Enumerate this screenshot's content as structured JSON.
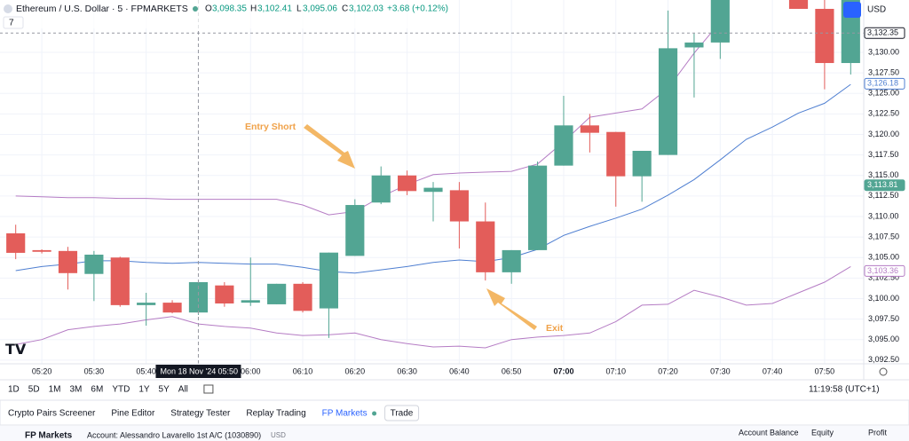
{
  "header": {
    "symbol": "Ethereum / U.S. Dollar · 5 · FPMARKETS",
    "o_label": "O",
    "o": "3,098.35",
    "h_label": "H",
    "h": "3,102.41",
    "l_label": "L",
    "l": "3,095.06",
    "c_label": "C",
    "c": "3,102.03",
    "change": "+3.68 (+0.12%)",
    "indicators": "7",
    "currency": "USD"
  },
  "chart_data": {
    "type": "candlestick",
    "categories": [
      null,
      "05:20",
      null,
      "05:30",
      null,
      "05:40",
      null,
      null,
      null,
      "06:00",
      null,
      "06:10",
      null,
      "06:20",
      null,
      "06:30",
      null,
      "06:40",
      null,
      "06:50",
      null,
      "07:00",
      null,
      "07:10",
      null,
      "07:20",
      null,
      "07:30",
      null,
      "07:40",
      null,
      "07:50",
      null
    ],
    "open": [
      3107.95,
      3105.9,
      3105.8,
      3103.0,
      3105.0,
      3099.2,
      3099.5,
      3098.3,
      3101.6,
      3099.5,
      3099.3,
      3101.8,
      3098.8,
      3105.2,
      3111.7,
      3115.0,
      3113.0,
      3113.2,
      3109.4,
      3103.2,
      3105.9,
      3116.2,
      3121.1,
      3120.3,
      3114.9,
      3117.5,
      3130.6,
      3131.2,
      null,
      null,
      3136.4,
      3135.3,
      3128.7
    ],
    "high": [
      3109.0,
      3106.0,
      3106.3,
      3105.8,
      3105.1,
      3100.7,
      3099.8,
      3102.0,
      3102.0,
      3105.0,
      3101.8,
      3102.0,
      3105.6,
      3112.1,
      3116.1,
      3115.6,
      3114.2,
      3114.2,
      3111.7,
      3105.9,
      3116.7,
      3124.7,
      3122.5,
      3120.3,
      3118.0,
      3135.1,
      3132.3,
      3136.4,
      null,
      null,
      3136.4,
      3136.4,
      3136.4
    ],
    "low": [
      3104.8,
      3105.5,
      3101.1,
      3099.7,
      3099.0,
      3096.7,
      3098.2,
      3098.0,
      3099.0,
      3099.1,
      3099.3,
      3098.3,
      3095.2,
      3105.2,
      3111.5,
      3112.6,
      3109.4,
      3106.1,
      3102.2,
      3101.8,
      3105.9,
      3116.2,
      3117.8,
      3111.2,
      3111.8,
      3117.5,
      3124.5,
      3129.2,
      null,
      null,
      3135.3,
      3125.5,
      3127.3
    ],
    "close": [
      3105.57,
      3105.7,
      3103.1,
      3105.35,
      3099.2,
      3099.5,
      3098.3,
      3102.0,
      3099.4,
      3099.8,
      3101.8,
      3098.5,
      3105.6,
      3111.4,
      3115.0,
      3113.1,
      3113.5,
      3109.4,
      3103.2,
      3105.9,
      3116.2,
      3121.1,
      3120.2,
      3114.9,
      3118.0,
      3130.5,
      3131.2,
      3136.4,
      null,
      null,
      3135.3,
      3128.7,
      3136.4
    ],
    "up_color": "#52a593",
    "down_color": "#e35d5a",
    "lines": [
      {
        "color": "#4f7fd1",
        "values": [
          3103.4,
          3103.9,
          3104.2,
          3104.6,
          3104.6,
          3104.4,
          3104.3,
          3104.4,
          3104.3,
          3104.2,
          3104.2,
          3103.8,
          3103.3,
          3103.1,
          3103.5,
          3103.9,
          3104.4,
          3104.7,
          3104.5,
          3105.0,
          3106.0,
          3107.7,
          3108.8,
          3109.8,
          3110.9,
          3112.6,
          3114.5,
          3116.9,
          3119.4,
          3120.9,
          3122.6,
          3123.8,
          3126.1
        ]
      },
      {
        "color": "#b57cc4",
        "values": [
          3112.5,
          3112.4,
          3112.3,
          3112.3,
          3112.2,
          3112.2,
          3112.1,
          3112.1,
          3112.1,
          3112.1,
          3112.1,
          3111.4,
          3110.2,
          3110.6,
          3112.4,
          3113.9,
          3115.1,
          3115.3,
          3115.4,
          3115.5,
          3116.4,
          3119.1,
          3122.1,
          3122.6,
          3123.1,
          3125.6,
          3129.9,
          3133.7,
          null,
          null,
          null,
          null,
          null
        ]
      },
      {
        "color": "#b57cc4",
        "values": [
          3094.4,
          3095.0,
          3096.2,
          3096.6,
          3096.9,
          3097.4,
          3097.8,
          3096.9,
          3096.6,
          3096.4,
          3095.8,
          3095.5,
          3095.6,
          3095.8,
          3095.0,
          3094.5,
          3094.1,
          3094.2,
          3094.0,
          3095.0,
          3095.3,
          3095.5,
          3095.8,
          3097.2,
          3099.2,
          3099.3,
          3101.0,
          3100.2,
          3099.2,
          3099.4,
          3100.7,
          3102.0,
          3103.9
        ]
      }
    ],
    "ylim": [
      3092.05,
      3136.38
    ],
    "yticks": [
      {
        "value": 3092.5,
        "label": "3,092.50"
      },
      {
        "value": 3095,
        "label": "3,095.00"
      },
      {
        "value": 3097.5,
        "label": "3,097.50"
      },
      {
        "value": 3100,
        "label": "3,100.00"
      },
      {
        "value": 3102.5,
        "label": "3,102.50"
      },
      {
        "value": 3105,
        "label": "3,105.00"
      },
      {
        "value": 3107.5,
        "label": "3,107.50"
      },
      {
        "value": 3110,
        "label": "3,110.00"
      },
      {
        "value": 3112.5,
        "label": "3,112.50"
      },
      {
        "value": 3115,
        "label": "3,115.00"
      },
      {
        "value": 3117.5,
        "label": "3,117.50"
      },
      {
        "value": 3120,
        "label": "3,120.00"
      },
      {
        "value": 3122.5,
        "label": "3,122.50"
      },
      {
        "value": 3125,
        "label": "3,125.00"
      },
      {
        "value": 3127.5,
        "label": "3,127.50"
      },
      {
        "value": 3130,
        "label": "3,130.00"
      }
    ],
    "price_tags": [
      {
        "value": 3132.35,
        "label": "3,132.35",
        "color": "#131722"
      },
      {
        "value": 3126.18,
        "label": "3,126.18",
        "color": "#4f7fd1"
      },
      {
        "value": 3113.81,
        "label": "3,113.81",
        "color": "#52a593"
      },
      {
        "value": 3103.36,
        "label": "3,103.36",
        "color": "#b57cc4"
      }
    ],
    "crosshair": {
      "date": "Mon 18 Nov '24",
      "time": "05:50",
      "index": 7
    },
    "annotations": [
      "Entry Short",
      "Exit"
    ],
    "grid": true
  },
  "toolbar": {
    "ranges": [
      "1D",
      "5D",
      "1M",
      "3M",
      "6M",
      "YTD",
      "1Y",
      "5Y",
      "All"
    ],
    "clock": "11:19:58 (UTC+1)"
  },
  "tabs": [
    "Crypto Pairs Screener",
    "Pine Editor",
    "Strategy Tester",
    "Replay Trading",
    "FP Markets",
    "Trade"
  ],
  "footer": {
    "broker": "FP Markets",
    "account": "Account: Alessandro Lavarello 1st A/C (1030890)",
    "currency": "USD",
    "balance": "Account Balance",
    "equity": "Equity",
    "profit": "Profit"
  }
}
